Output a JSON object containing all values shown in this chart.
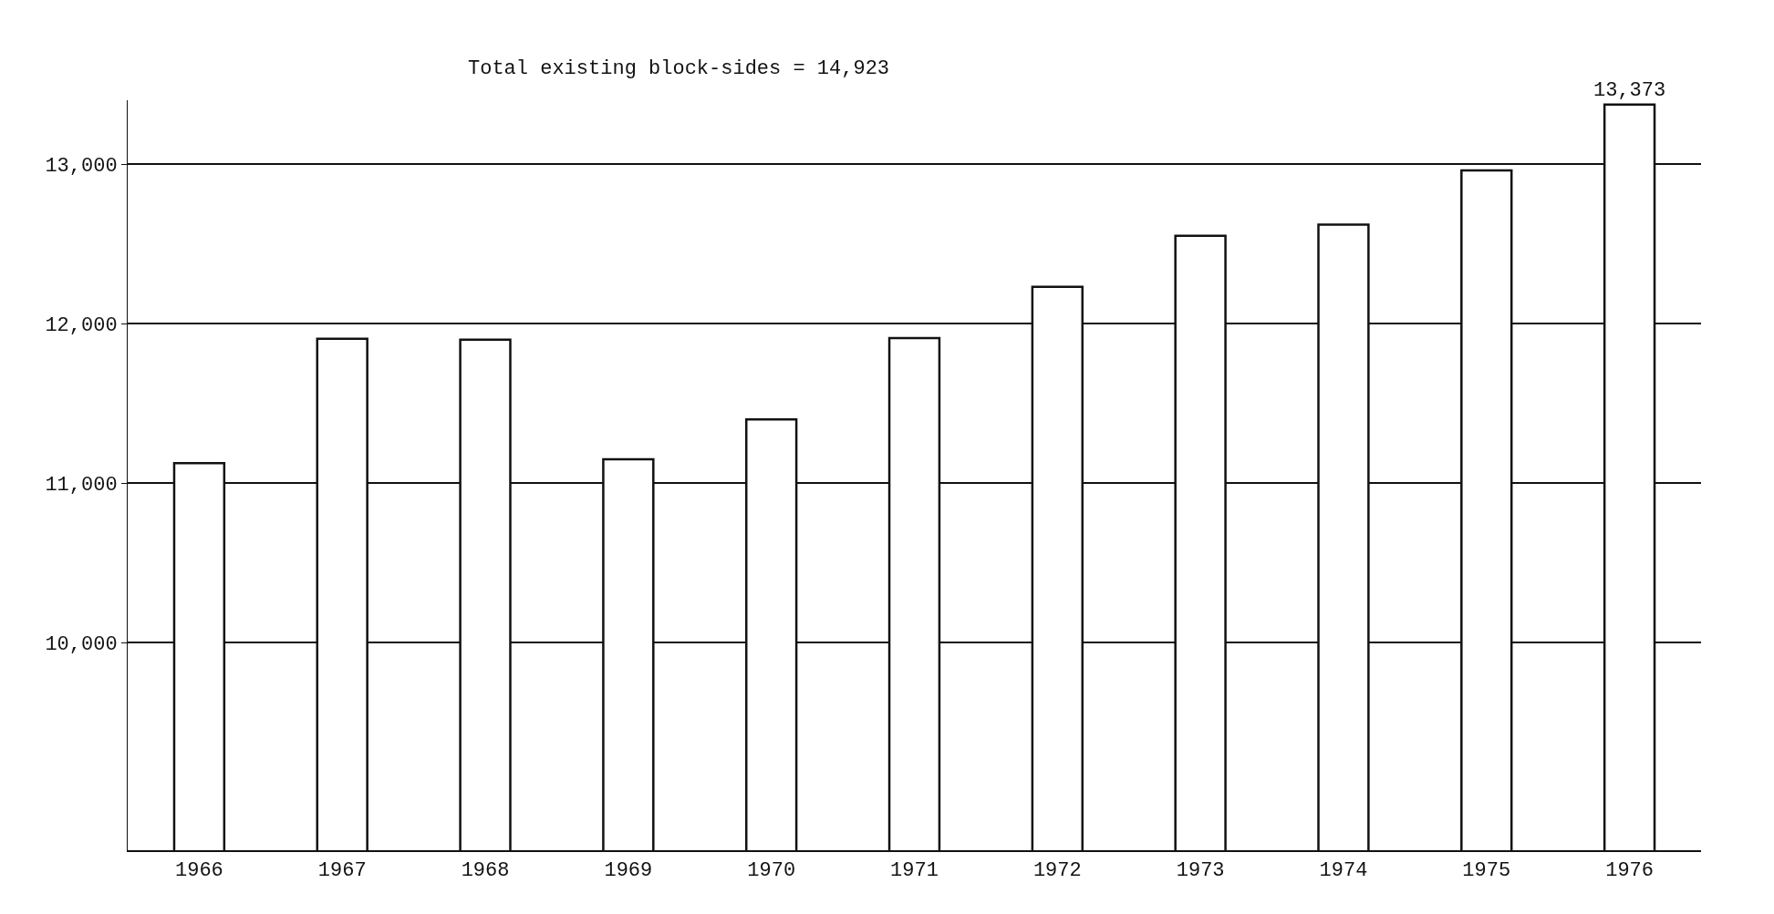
{
  "chart_data": {
    "type": "bar",
    "subtitle": "Total existing block-sides = 14,923",
    "categories": [
      "1966",
      "1967",
      "1968",
      "1969",
      "1970",
      "1971",
      "1972",
      "1973",
      "1974",
      "1975",
      "1976"
    ],
    "values": [
      11125,
      11905,
      11900,
      11150,
      11400,
      11910,
      12230,
      12550,
      12620,
      12960,
      13373
    ],
    "value_labels": [
      null,
      null,
      null,
      null,
      null,
      null,
      null,
      null,
      null,
      null,
      "13,373"
    ],
    "color": "#ffffff",
    "ylim": [
      8700,
      13400
    ],
    "yticks": [
      {
        "value": 10000,
        "label": "10,000"
      },
      {
        "value": 11000,
        "label": "11,000"
      },
      {
        "value": 12000,
        "label": "12,000"
      },
      {
        "value": 13000,
        "label": "13,000"
      }
    ],
    "grid": "y"
  }
}
